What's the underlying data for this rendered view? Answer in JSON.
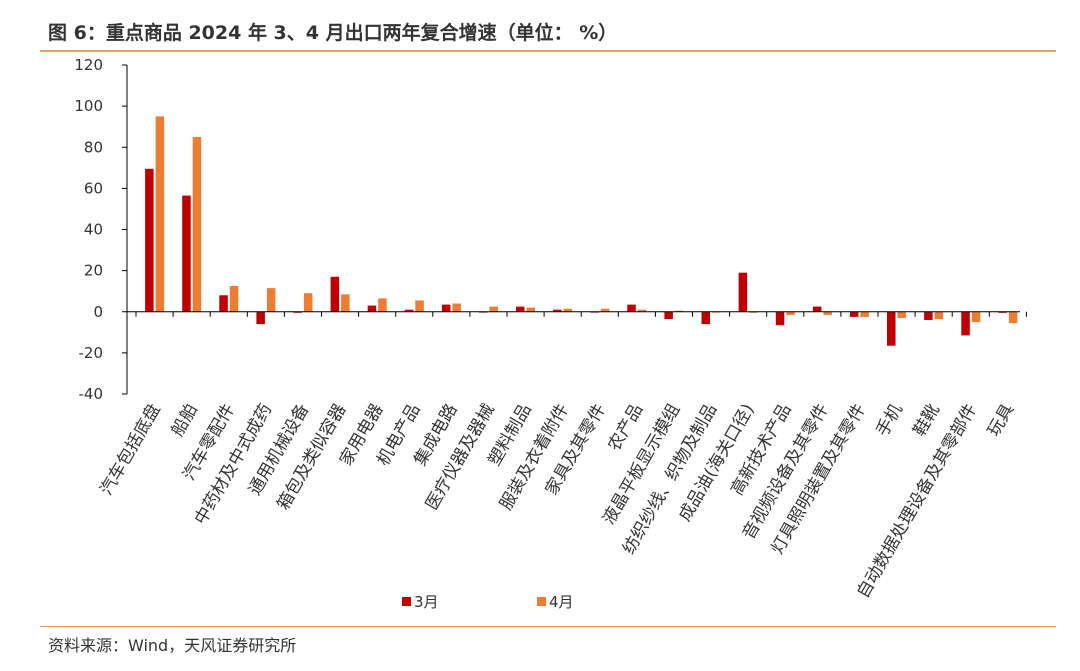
{
  "header": {
    "title": "图 6：重点商品 2024 年 3、4 月出口两年复合增速（单位： %）"
  },
  "footer": {
    "source": "资料来源：Wind，天风证券研究所"
  },
  "colors": {
    "series_march": "#c00000",
    "series_april": "#ed7d31",
    "accent_rule": "#e8a35c"
  },
  "chart_data": {
    "type": "bar",
    "title": "",
    "xlabel": "",
    "ylabel": "",
    "ylim": [
      -40,
      120
    ],
    "yticks": [
      -40,
      -20,
      0,
      20,
      40,
      60,
      80,
      100,
      120
    ],
    "grid": false,
    "legend_position": "bottom",
    "categories": [
      "汽车包括底盘",
      "船舶",
      "汽车零配件",
      "中药材及中式成药",
      "通用机械设备",
      "箱包及类似容器",
      "家用电器",
      "机电产品",
      "集成电路",
      "医疗仪器及器械",
      "塑料制品",
      "服装及衣着附件",
      "家具及其零件",
      "农产品",
      "液晶平板显示模组",
      "纺织纱线、织物及制品",
      "成品油(海关口径)",
      "高新技术产品",
      "音视频设备及其零件",
      "灯具照明装置及其零件",
      "手机",
      "鞋靴",
      "自动数据处理设备及其零部件",
      "玩具"
    ],
    "series": [
      {
        "name": "3月",
        "values": [
          69.5,
          56.5,
          8,
          -6,
          -0.5,
          17,
          3,
          1,
          3.5,
          0,
          2.5,
          1,
          0,
          3.5,
          -3.5,
          -6,
          19,
          -6.5,
          2.5,
          -2.5,
          -16.5,
          -4,
          -11.5,
          -0.5
        ]
      },
      {
        "name": "4月",
        "values": [
          95,
          85,
          12.5,
          11.5,
          9,
          8.5,
          6.5,
          5.5,
          4,
          2.5,
          2,
          1.5,
          1.5,
          1,
          0.5,
          0,
          -0.5,
          -1.5,
          -1.5,
          -2.5,
          -3,
          -3.5,
          -5,
          -5.5
        ]
      }
    ]
  }
}
